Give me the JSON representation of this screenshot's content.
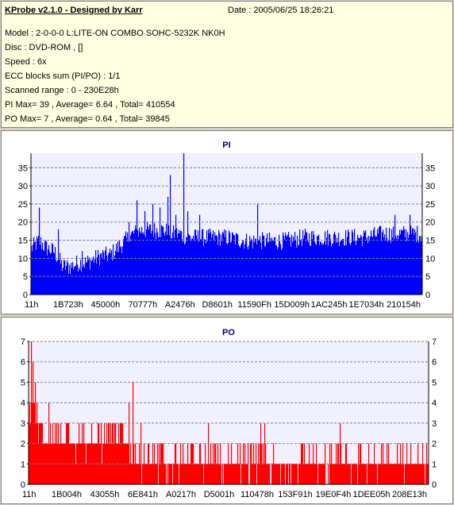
{
  "header": {
    "title": "KProbe v2.1.0 - Designed by Karr",
    "date": "Date : 2005/06/25 18:26:21",
    "model": "Model : 2-0-0-0 L:LITE-ON COMBO SOHC-5232K NK0H",
    "disc": "Disc : DVD-ROM ,  []",
    "speed": "Speed : 6x",
    "ecc": "ECC blocks sum (PI/PO) : 1/1",
    "range": "Scanned range : 0 - 230E28h",
    "pi_stats": "PI Max= 39 , Average= 6.64 , Total= 410554",
    "po_stats": "PO Max= 7 , Average= 0.64 , Total= 39845"
  },
  "colors": {
    "pi": "#0000ff",
    "po": "#ff0000",
    "grid": "#808080",
    "plot_bg": "#f0f0ff"
  },
  "chart_data": [
    {
      "type": "bar",
      "title": "PI",
      "ylim": [
        0,
        39
      ],
      "yticks": [
        0,
        5,
        10,
        15,
        20,
        25,
        30,
        35
      ],
      "xtick_labels": [
        "11h",
        "1B723h",
        "45000h",
        "70777h",
        "A2476h",
        "D8601h",
        "11590Fh",
        "15D009h",
        "1AC245h",
        "1E7034h",
        "210154h"
      ],
      "grid": "horizontal-dashed",
      "profile_x": [
        0,
        0.01,
        0.02,
        0.04,
        0.06,
        0.08,
        0.1,
        0.12,
        0.14,
        0.16,
        0.18,
        0.2,
        0.22,
        0.24,
        0.26,
        0.28,
        0.3,
        0.32,
        0.34,
        0.36,
        0.38,
        0.4,
        0.45,
        0.5,
        0.55,
        0.6,
        0.65,
        0.7,
        0.75,
        0.8,
        0.85,
        0.9,
        0.95,
        1.0
      ],
      "profile_y": [
        12,
        13,
        14,
        12,
        11,
        7,
        7,
        8,
        8,
        9,
        10,
        10,
        12,
        14,
        16,
        17,
        17,
        17,
        17,
        16,
        16,
        15,
        15,
        15,
        14,
        14,
        14,
        15,
        15,
        15,
        15,
        16,
        16,
        16
      ],
      "peaks": [
        {
          "x": 0.02,
          "y": 24
        },
        {
          "x": 0.07,
          "y": 18
        },
        {
          "x": 0.13,
          "y": 12
        },
        {
          "x": 0.25,
          "y": 20
        },
        {
          "x": 0.27,
          "y": 26
        },
        {
          "x": 0.29,
          "y": 23
        },
        {
          "x": 0.31,
          "y": 25
        },
        {
          "x": 0.33,
          "y": 24
        },
        {
          "x": 0.35,
          "y": 27
        },
        {
          "x": 0.355,
          "y": 33
        },
        {
          "x": 0.37,
          "y": 22
        },
        {
          "x": 0.39,
          "y": 39
        },
        {
          "x": 0.4,
          "y": 23
        },
        {
          "x": 0.43,
          "y": 22
        },
        {
          "x": 0.58,
          "y": 25
        },
        {
          "x": 0.93,
          "y": 22
        },
        {
          "x": 0.97,
          "y": 22
        }
      ]
    },
    {
      "type": "bar",
      "title": "PO",
      "ylim": [
        0,
        7
      ],
      "yticks": [
        0,
        1,
        2,
        3,
        4,
        5,
        6,
        7
      ],
      "xtick_labels": [
        "11h",
        "1B004h",
        "43055h",
        "6E841h",
        "A0217h",
        "D5001h",
        "110478h",
        "153F91h",
        "19E0F4h",
        "1DEE05h",
        "208E13h"
      ],
      "grid": "horizontal-dashed",
      "profile_x": [
        0,
        0.01,
        0.02,
        0.04,
        0.06,
        0.1,
        0.2,
        0.3,
        0.4,
        0.5,
        0.6,
        0.7,
        0.8,
        0.9,
        1.0
      ],
      "profile_y": [
        3,
        4,
        3,
        2,
        2,
        2,
        2,
        1,
        1,
        1,
        1,
        1,
        1,
        1,
        1
      ],
      "peaks": [
        {
          "x": 0.005,
          "y": 7
        },
        {
          "x": 0.01,
          "y": 6
        },
        {
          "x": 0.015,
          "y": 5
        },
        {
          "x": 0.05,
          "y": 4
        },
        {
          "x": 0.06,
          "y": 3
        },
        {
          "x": 0.08,
          "y": 3
        },
        {
          "x": 0.2,
          "y": 3
        },
        {
          "x": 0.25,
          "y": 4
        },
        {
          "x": 0.26,
          "y": 5
        },
        {
          "x": 0.28,
          "y": 3
        },
        {
          "x": 0.3,
          "y": 2
        },
        {
          "x": 0.45,
          "y": 3
        },
        {
          "x": 0.58,
          "y": 3
        },
        {
          "x": 0.59,
          "y": 3
        },
        {
          "x": 0.72,
          "y": 2
        },
        {
          "x": 0.78,
          "y": 3
        },
        {
          "x": 0.83,
          "y": 2
        },
        {
          "x": 0.9,
          "y": 2
        }
      ]
    }
  ]
}
